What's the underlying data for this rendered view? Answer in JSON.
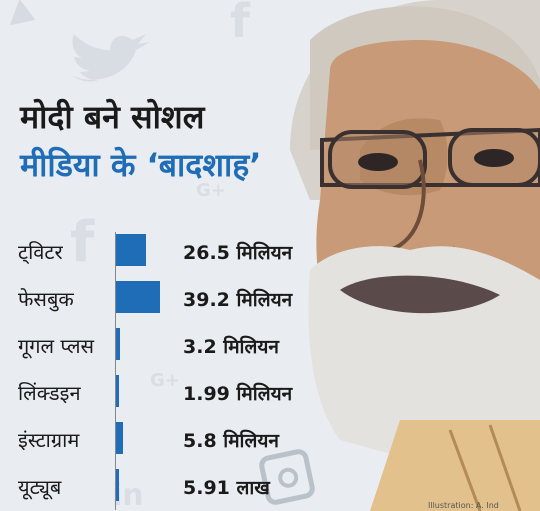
{
  "title": {
    "line1": "मोदी बने सोशल",
    "line2": "मीडिया के ‘बादशाह’"
  },
  "colors": {
    "background": "#e9edf1",
    "bar": "#1f6db6",
    "title_accent": "#1f6db6",
    "text": "#1a1a1a"
  },
  "icons": [
    "youtube-play-icon",
    "facebook-icon",
    "twitter-bird-icon",
    "google-plus-icon",
    "linkedin-icon",
    "instagram-icon"
  ],
  "credit": "Illustration: A. Ind",
  "chart_data": {
    "type": "bar",
    "orientation": "horizontal",
    "categories": [
      "ट्विटर",
      "फेसबुक",
      "गूगल प्लस",
      "लिंक्डइन",
      "इंस्टाग्राम",
      "यूट्यूब"
    ],
    "values": [
      26.5,
      39.2,
      3.2,
      1.99,
      5.8,
      0.591
    ],
    "value_labels": [
      "26.5 मिलियन",
      "39.2 मिलियन",
      "3.2 मिलियन",
      "1.99 मिलियन",
      "5.8 मिलियन",
      "5.91 लाख"
    ],
    "unit": "मिलियन",
    "xlim": [
      0,
      40
    ],
    "grid": false,
    "legend": "none"
  }
}
